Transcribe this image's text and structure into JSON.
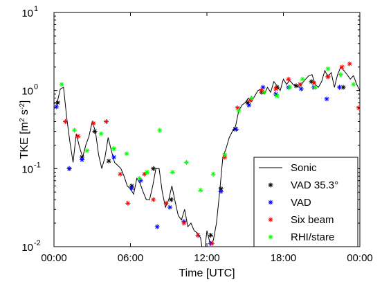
{
  "chart_data": {
    "type": "line+scatter",
    "xlabel": "Time [UTC]",
    "ylabel": "TKE [m² s⁻²]",
    "yscale": "log",
    "xlim": [
      0,
      24
    ],
    "ylim": [
      0.01,
      10
    ],
    "xticks": [
      {
        "value": 0,
        "label": "00:00"
      },
      {
        "value": 6,
        "label": "06:00"
      },
      {
        "value": 12,
        "label": "12:00"
      },
      {
        "value": 18,
        "label": "18:00"
      },
      {
        "value": 24,
        "label": "00:00"
      }
    ],
    "yticks": [
      {
        "value": 0.01,
        "base": "10",
        "exp": "-2"
      },
      {
        "value": 0.1,
        "base": "10",
        "exp": "-1"
      },
      {
        "value": 1,
        "base": "10",
        "exp": "0"
      },
      {
        "value": 10,
        "base": "10",
        "exp": "1"
      }
    ],
    "grid": false,
    "legend_position": "bottom-right",
    "series": [
      {
        "name": "Sonic",
        "kind": "line",
        "color": "#000000",
        "points": [
          [
            0,
            0.68
          ],
          [
            0.25,
            0.7
          ],
          [
            0.5,
            1.05
          ],
          [
            0.75,
            1.1
          ],
          [
            1,
            0.45
          ],
          [
            1.25,
            0.22
          ],
          [
            1.5,
            0.12
          ],
          [
            1.75,
            0.28
          ],
          [
            2,
            0.19
          ],
          [
            2.25,
            0.14
          ],
          [
            2.5,
            0.2
          ],
          [
            2.75,
            0.26
          ],
          [
            3,
            0.4
          ],
          [
            3.25,
            0.3
          ],
          [
            3.5,
            0.15
          ],
          [
            3.75,
            0.1
          ],
          [
            4,
            0.14
          ],
          [
            4.25,
            0.25
          ],
          [
            4.5,
            0.17
          ],
          [
            4.75,
            0.12
          ],
          [
            5,
            0.11
          ],
          [
            5.25,
            0.1
          ],
          [
            5.5,
            0.08
          ],
          [
            5.75,
            0.06
          ],
          [
            6,
            0.055
          ],
          [
            6.25,
            0.047
          ],
          [
            6.5,
            0.075
          ],
          [
            6.75,
            0.065
          ],
          [
            7,
            0.05
          ],
          [
            7.25,
            0.04
          ],
          [
            7.5,
            0.04
          ],
          [
            7.75,
            0.06
          ],
          [
            8,
            0.1
          ],
          [
            8.25,
            0.1
          ],
          [
            8.5,
            0.05
          ],
          [
            8.75,
            0.032
          ],
          [
            9,
            0.04
          ],
          [
            9.25,
            0.06
          ],
          [
            9.5,
            0.038
          ],
          [
            9.75,
            0.025
          ],
          [
            10,
            0.022
          ],
          [
            10.25,
            0.03
          ],
          [
            10.5,
            0.018
          ],
          [
            10.75,
            0.02
          ],
          [
            11,
            0.016
          ],
          [
            11.25,
            0.015
          ],
          [
            11.5,
            0.013
          ],
          [
            11.75,
            0.007
          ],
          [
            12,
            0.016
          ],
          [
            12.25,
            0.011
          ],
          [
            12.5,
            0.012
          ],
          [
            12.75,
            0.02
          ],
          [
            13,
            0.05
          ],
          [
            13.25,
            0.14
          ],
          [
            13.5,
            0.18
          ],
          [
            13.75,
            0.25
          ],
          [
            14,
            0.3
          ],
          [
            14.25,
            0.35
          ],
          [
            14.5,
            0.55
          ],
          [
            14.75,
            0.65
          ],
          [
            15,
            0.7
          ],
          [
            15.25,
            0.8
          ],
          [
            15.5,
            0.72
          ],
          [
            15.75,
            0.85
          ],
          [
            16,
            1.0
          ],
          [
            16.25,
            1.05
          ],
          [
            16.5,
            0.9
          ],
          [
            16.75,
            1.1
          ],
          [
            17,
            0.95
          ],
          [
            17.25,
            1.3
          ],
          [
            17.5,
            1.15
          ],
          [
            17.75,
            1.0
          ],
          [
            18,
            1.4
          ],
          [
            18.25,
            1.2
          ],
          [
            18.5,
            1.35
          ],
          [
            18.75,
            1.2
          ],
          [
            19,
            1.15
          ],
          [
            19.25,
            1.1
          ],
          [
            19.5,
            1.25
          ],
          [
            19.75,
            1.4
          ],
          [
            20,
            1.55
          ],
          [
            20.25,
            1.6
          ],
          [
            20.5,
            1.2
          ],
          [
            20.75,
            1.1
          ],
          [
            21,
            1.3
          ],
          [
            21.25,
            1.8
          ],
          [
            21.5,
            1.5
          ],
          [
            21.75,
            1.7
          ],
          [
            22,
            1.1
          ],
          [
            22.25,
            1.6
          ],
          [
            22.5,
            2.0
          ],
          [
            22.75,
            1.8
          ],
          [
            23,
            1.6
          ],
          [
            23.25,
            1.4
          ],
          [
            23.5,
            1.55
          ],
          [
            23.75,
            1.2
          ],
          [
            24,
            1.0
          ]
        ]
      },
      {
        "name": "VAD 35.3°",
        "kind": "markers",
        "marker": "asterisk",
        "color": "#000000",
        "points": [
          [
            0.3,
            0.7
          ],
          [
            1.2,
            0.1
          ],
          [
            2.2,
            0.14
          ],
          [
            3.2,
            0.3
          ],
          [
            4.3,
            0.125
          ],
          [
            6.1,
            0.06
          ],
          [
            7.8,
            0.1
          ],
          [
            9.2,
            0.04
          ],
          [
            12.3,
            0.014
          ],
          [
            13.1,
            0.055
          ],
          [
            14.2,
            0.32
          ],
          [
            15.2,
            0.7
          ],
          [
            16.3,
            0.95
          ],
          [
            17.5,
            1.1
          ],
          [
            19,
            1.15
          ],
          [
            20.2,
            1.3
          ],
          [
            21.5,
            1.5
          ],
          [
            22.7,
            1.1
          ]
        ]
      },
      {
        "name": "VAD",
        "kind": "markers",
        "marker": "asterisk",
        "color": "#0000ff",
        "points": [
          [
            0.2,
            0.62
          ],
          [
            1.2,
            0.1
          ],
          [
            2.2,
            0.13
          ],
          [
            4.7,
            0.14
          ],
          [
            6.1,
            0.056
          ],
          [
            6.8,
            0.07
          ],
          [
            8.1,
            0.018
          ],
          [
            9.1,
            0.032
          ],
          [
            10.2,
            0.021
          ],
          [
            11.3,
            0.014
          ],
          [
            12.3,
            0.011
          ],
          [
            13.1,
            0.051
          ],
          [
            14.3,
            0.32
          ],
          [
            15.3,
            0.65
          ],
          [
            16.4,
            1.1
          ],
          [
            17.4,
            0.9
          ],
          [
            18.4,
            1.1
          ],
          [
            19.4,
            1.05
          ],
          [
            20.4,
            1.1
          ],
          [
            21.4,
            0.78
          ],
          [
            22.4,
            1.1
          ]
        ]
      },
      {
        "name": "Six beam",
        "kind": "markers",
        "marker": "asterisk",
        "color": "#ff0000",
        "points": [
          [
            0.9,
            0.4
          ],
          [
            1.9,
            0.26
          ],
          [
            3.1,
            0.38
          ],
          [
            4.1,
            0.4
          ],
          [
            5.2,
            0.085
          ],
          [
            5.8,
            0.036
          ],
          [
            7.1,
            0.085
          ],
          [
            7.8,
            0.04
          ],
          [
            8.8,
            0.036
          ],
          [
            10.2,
            0.02
          ],
          [
            11.3,
            0.014
          ],
          [
            12.4,
            0.011
          ],
          [
            13.4,
            0.14
          ],
          [
            14.4,
            0.6
          ],
          [
            15.4,
            0.75
          ],
          [
            16.3,
            1.0
          ],
          [
            17.4,
            1.05
          ],
          [
            18.4,
            1.4
          ],
          [
            19.3,
            1.2
          ],
          [
            20.4,
            1.25
          ],
          [
            21.5,
            1.5
          ],
          [
            22.6,
            2.0
          ],
          [
            23.2,
            2.2
          ],
          [
            23.9,
            0.6
          ]
        ]
      },
      {
        "name": "RHI/stare",
        "kind": "markers",
        "marker": "asterisk",
        "color": "#00ff00",
        "points": [
          [
            0.6,
            1.2
          ],
          [
            1.6,
            0.31
          ],
          [
            2.6,
            0.17
          ],
          [
            3.7,
            0.28
          ],
          [
            4.7,
            0.18
          ],
          [
            5.7,
            0.155
          ],
          [
            6.7,
            0.075
          ],
          [
            7.3,
            0.09
          ],
          [
            8.3,
            0.31
          ],
          [
            9.3,
            0.09
          ],
          [
            10.4,
            0.12
          ],
          [
            11.5,
            0.053
          ],
          [
            12.5,
            0.085
          ],
          [
            13.4,
            0.15
          ],
          [
            14.5,
            0.55
          ],
          [
            15.5,
            0.8
          ],
          [
            16.5,
            0.95
          ],
          [
            17.5,
            0.85
          ],
          [
            18.5,
            1.1
          ],
          [
            19.5,
            1.4
          ],
          [
            20.5,
            1.1
          ],
          [
            21.5,
            1.9
          ],
          [
            22.5,
            1.6
          ],
          [
            23.5,
            1.2
          ]
        ]
      }
    ]
  }
}
